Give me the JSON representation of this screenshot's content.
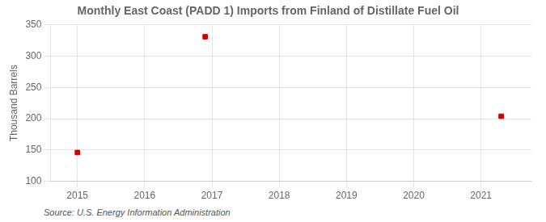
{
  "chart_data": {
    "type": "scatter",
    "title": "Monthly East Coast (PADD 1) Imports from Finland of Distillate Fuel Oil",
    "ylabel": "Thousand Barrels",
    "annotation": "Source: U.S. Energy Information Administration",
    "x": [
      2015.0,
      2016.9,
      2021.3
    ],
    "values": [
      146,
      331,
      204
    ],
    "color": "#cc0000",
    "marker": "square",
    "xlim": [
      2014.6,
      2021.75
    ],
    "xticks": [
      2015,
      2016,
      2017,
      2018,
      2019,
      2020,
      2021
    ],
    "ylim": [
      100,
      350
    ],
    "yticks": [
      100,
      150,
      200,
      250,
      300,
      350
    ],
    "grid": true
  }
}
